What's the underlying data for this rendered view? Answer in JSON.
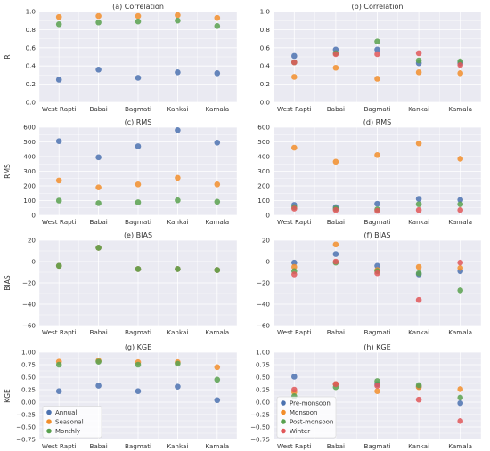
{
  "colors": {
    "blue": "#4C72B0",
    "orange": "#F28E2B",
    "green": "#59A14F",
    "red": "#E15759",
    "plot_bg": "#EAEAF2",
    "grid": "#FFFFFF"
  },
  "chart_data": [
    {
      "type": "scatter",
      "title": "(a) Correlation",
      "ylabel": "R",
      "categories": [
        "West Rapti",
        "Babai",
        "Bagmati",
        "Kankai",
        "Kamala"
      ],
      "ylim": [
        0,
        1.0
      ],
      "yticks": [
        "0.0",
        "0.2",
        "0.4",
        "0.6",
        "0.8",
        "1.0"
      ],
      "series": [
        {
          "name": "Annual",
          "color": "blue",
          "values": [
            0.25,
            0.36,
            0.27,
            0.33,
            0.32
          ]
        },
        {
          "name": "Seasonal",
          "color": "orange",
          "values": [
            0.94,
            0.95,
            0.95,
            0.96,
            0.93
          ]
        },
        {
          "name": "Monthly",
          "color": "green",
          "values": [
            0.86,
            0.88,
            0.89,
            0.9,
            0.84
          ]
        }
      ]
    },
    {
      "type": "scatter",
      "title": "(b) Correlation",
      "ylabel": "",
      "categories": [
        "West Rapti",
        "Babai",
        "Bagmati",
        "Kankai",
        "Kamala"
      ],
      "ylim": [
        0,
        1.0
      ],
      "yticks": [
        "0.0",
        "0.2",
        "0.4",
        "0.6",
        "0.8",
        "1.0"
      ],
      "series": [
        {
          "name": "Pre-monsoon",
          "color": "blue",
          "values": [
            0.51,
            0.58,
            0.58,
            0.43,
            0.43
          ]
        },
        {
          "name": "Monsoon",
          "color": "orange",
          "values": [
            0.28,
            0.38,
            0.26,
            0.33,
            0.32
          ]
        },
        {
          "name": "Post-monsoon",
          "color": "green",
          "values": [
            0.44,
            0.54,
            0.67,
            0.46,
            0.45
          ]
        },
        {
          "name": "Winter",
          "color": "red",
          "values": [
            0.44,
            0.53,
            0.53,
            0.54,
            0.41
          ]
        }
      ]
    },
    {
      "type": "scatter",
      "title": "(c) RMS",
      "ylabel": "RMS",
      "categories": [
        "West Rapti",
        "Babai",
        "Bagmati",
        "Kankai",
        "Kamala"
      ],
      "ylim": [
        0,
        600
      ],
      "yticks": [
        "0",
        "100",
        "200",
        "300",
        "400",
        "500",
        "600"
      ],
      "series": [
        {
          "name": "Annual",
          "color": "blue",
          "values": [
            505,
            395,
            470,
            580,
            495
          ]
        },
        {
          "name": "Seasonal",
          "color": "orange",
          "values": [
            237,
            190,
            210,
            255,
            210
          ]
        },
        {
          "name": "Monthly",
          "color": "green",
          "values": [
            100,
            82,
            88,
            102,
            92
          ]
        }
      ]
    },
    {
      "type": "scatter",
      "title": "(d) RMS",
      "ylabel": "",
      "categories": [
        "West Rapti",
        "Babai",
        "Bagmati",
        "Kankai",
        "Kamala"
      ],
      "ylim": [
        0,
        600
      ],
      "yticks": [
        "0",
        "100",
        "200",
        "300",
        "400",
        "500",
        "600"
      ],
      "series": [
        {
          "name": "Pre-monsoon",
          "color": "blue",
          "values": [
            70,
            55,
            78,
            112,
            105
          ]
        },
        {
          "name": "Monsoon",
          "color": "orange",
          "values": [
            460,
            365,
            410,
            490,
            385
          ]
        },
        {
          "name": "Post-monsoon",
          "color": "green",
          "values": [
            55,
            45,
            40,
            75,
            75
          ]
        },
        {
          "name": "Winter",
          "color": "red",
          "values": [
            45,
            35,
            30,
            35,
            35
          ]
        }
      ]
    },
    {
      "type": "scatter",
      "title": "(e) BIAS",
      "ylabel": "BIAS",
      "categories": [
        "West Rapti",
        "Babai",
        "Bagmati",
        "Kankai",
        "Kamala"
      ],
      "ylim": [
        -60,
        20
      ],
      "yticks": [
        "−60",
        "−40",
        "−20",
        "0",
        "20"
      ],
      "series": [
        {
          "name": "Annual",
          "color": "blue",
          "values": [
            -4,
            13,
            -7,
            -7,
            -8
          ]
        },
        {
          "name": "Seasonal",
          "color": "orange",
          "values": [
            -4,
            13,
            -7,
            -7,
            -8
          ]
        },
        {
          "name": "Monthly",
          "color": "green",
          "values": [
            -4,
            13,
            -7,
            -7,
            -8
          ]
        }
      ]
    },
    {
      "type": "scatter",
      "title": "(f) BIAS",
      "ylabel": "",
      "categories": [
        "West Rapti",
        "Babai",
        "Bagmati",
        "Kankai",
        "Kamala"
      ],
      "ylim": [
        -60,
        20
      ],
      "yticks": [
        "−60",
        "−40",
        "−20",
        "0",
        "20"
      ],
      "series": [
        {
          "name": "Pre-monsoon",
          "color": "blue",
          "values": [
            -1,
            7,
            -4,
            -12,
            -9
          ]
        },
        {
          "name": "Monsoon",
          "color": "orange",
          "values": [
            -5,
            16,
            -8,
            -5,
            -6
          ]
        },
        {
          "name": "Post-monsoon",
          "color": "green",
          "values": [
            -9,
            -1,
            -9,
            -11,
            -27
          ]
        },
        {
          "name": "Winter",
          "color": "red",
          "values": [
            -12,
            0,
            -11,
            -36,
            -1
          ]
        }
      ]
    },
    {
      "type": "scatter",
      "title": "(g) KGE",
      "ylabel": "KGE",
      "categories": [
        "West Rapti",
        "Babai",
        "Bagmati",
        "Kankai",
        "Kamala"
      ],
      "ylim": [
        -0.75,
        1.0
      ],
      "yticks": [
        "−0.75",
        "−0.50",
        "−0.25",
        "0.00",
        "0.25",
        "0.50",
        "0.75",
        "1.00"
      ],
      "legend": "lower-left",
      "series": [
        {
          "name": "Annual",
          "color": "blue",
          "values": [
            0.22,
            0.33,
            0.22,
            0.31,
            0.04
          ]
        },
        {
          "name": "Seasonal",
          "color": "orange",
          "values": [
            0.81,
            0.83,
            0.8,
            0.8,
            0.7
          ]
        },
        {
          "name": "Monthly",
          "color": "green",
          "values": [
            0.75,
            0.81,
            0.75,
            0.77,
            0.45
          ]
        }
      ]
    },
    {
      "type": "scatter",
      "title": "(h) KGE",
      "ylabel": "",
      "categories": [
        "West Rapti",
        "Babai",
        "Bagmati",
        "Kankai",
        "Kamala"
      ],
      "ylim": [
        -0.75,
        1.0
      ],
      "yticks": [
        "−0.75",
        "−0.50",
        "−0.25",
        "0.00",
        "0.25",
        "0.50",
        "0.75",
        "1.00"
      ],
      "legend": "lower-left",
      "series": [
        {
          "name": "Pre-monsoon",
          "color": "blue",
          "values": [
            0.51,
            0.36,
            0.36,
            0.31,
            -0.02
          ]
        },
        {
          "name": "Monsoon",
          "color": "orange",
          "values": [
            0.2,
            0.36,
            0.22,
            0.3,
            0.26
          ]
        },
        {
          "name": "Post-monsoon",
          "color": "green",
          "values": [
            0.12,
            0.3,
            0.42,
            0.34,
            0.09
          ]
        },
        {
          "name": "Winter",
          "color": "red",
          "values": [
            0.25,
            0.36,
            0.33,
            0.05,
            -0.38
          ]
        }
      ]
    }
  ]
}
